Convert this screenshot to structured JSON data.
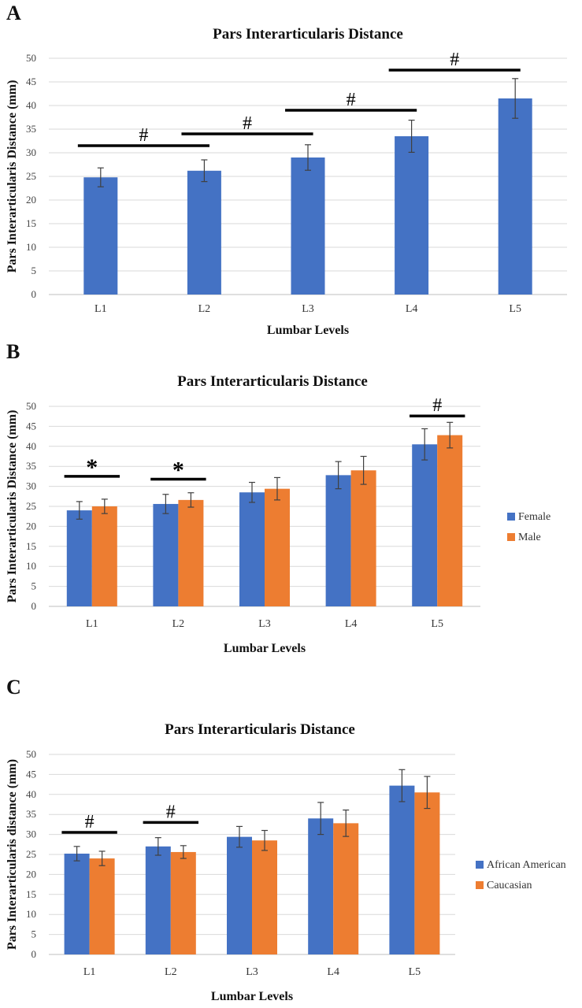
{
  "panels": [
    {
      "letter": "A",
      "chart_data": {
        "type": "bar",
        "title": "Pars Interarticularis Distance",
        "xlabel": "Lumbar Levels",
        "ylabel": "Pars Interarticularis Distance (mm)",
        "ylim": [
          0,
          50
        ],
        "yticks": [
          0,
          5,
          10,
          15,
          20,
          25,
          30,
          35,
          40,
          45,
          50
        ],
        "grid": true,
        "categories": [
          "L1",
          "L2",
          "L3",
          "L4",
          "L5"
        ],
        "series": [
          {
            "color": "#4472C4",
            "values": [
              24.8,
              26.2,
              29.0,
              33.5,
              41.5
            ],
            "errors": [
              2.0,
              2.3,
              2.7,
              3.4,
              4.2
            ]
          }
        ],
        "annotations": [
          {
            "symbol": "#",
            "from": 0,
            "to": 1,
            "y": 31.5
          },
          {
            "symbol": "#",
            "from": 1,
            "to": 2,
            "y": 34.0
          },
          {
            "symbol": "#",
            "from": 2,
            "to": 3,
            "y": 39.0
          },
          {
            "symbol": "#",
            "from": 3,
            "to": 4,
            "y": 47.5
          }
        ]
      }
    },
    {
      "letter": "B",
      "chart_data": {
        "type": "bar",
        "title": "Pars Interarticularis Distance",
        "xlabel": "Lumbar Levels",
        "ylabel": "Pars Interarticularis Distance (mm)",
        "ylim": [
          0,
          50
        ],
        "yticks": [
          0,
          5,
          10,
          15,
          20,
          25,
          30,
          35,
          40,
          45,
          50
        ],
        "grid": true,
        "legend": "right",
        "categories": [
          "L1",
          "L2",
          "L3",
          "L4",
          "L5"
        ],
        "series": [
          {
            "name": "Female",
            "color": "#4472C4",
            "values": [
              24.0,
              25.6,
              28.5,
              32.8,
              40.5
            ],
            "errors": [
              2.2,
              2.4,
              2.5,
              3.4,
              3.9
            ]
          },
          {
            "name": "Male",
            "color": "#ED7D31",
            "values": [
              25.0,
              26.6,
              29.4,
              34.0,
              42.8
            ],
            "errors": [
              1.8,
              1.8,
              2.8,
              3.5,
              3.2
            ]
          }
        ],
        "annotations": [
          {
            "symbol": "*",
            "category": 0,
            "y": 32.5
          },
          {
            "symbol": "*",
            "category": 1,
            "y": 31.8
          },
          {
            "symbol": "#",
            "category": 4,
            "y": 47.6
          }
        ]
      }
    },
    {
      "letter": "C",
      "chart_data": {
        "type": "bar",
        "title": "Pars Interarticularis Distance",
        "xlabel": "Lumbar Levels",
        "ylabel": "Pars Interarticularis distance (mm)",
        "ylim": [
          0,
          50
        ],
        "yticks": [
          0,
          5,
          10,
          15,
          20,
          25,
          30,
          35,
          40,
          45,
          50
        ],
        "grid": true,
        "legend": "right",
        "categories": [
          "L1",
          "L2",
          "L3",
          "L4",
          "L5"
        ],
        "series": [
          {
            "name": "African American",
            "color": "#4472C4",
            "values": [
              25.2,
              27.0,
              29.4,
              34.0,
              42.2
            ],
            "errors": [
              1.8,
              2.2,
              2.6,
              4.0,
              4.0
            ]
          },
          {
            "name": "Caucasian",
            "color": "#ED7D31",
            "values": [
              24.0,
              25.6,
              28.5,
              32.8,
              40.5
            ],
            "errors": [
              1.8,
              1.6,
              2.5,
              3.3,
              4.0
            ]
          }
        ],
        "annotations": [
          {
            "symbol": "#",
            "category": 0,
            "y": 30.5
          },
          {
            "symbol": "#",
            "category": 1,
            "y": 33.0
          }
        ]
      }
    }
  ]
}
